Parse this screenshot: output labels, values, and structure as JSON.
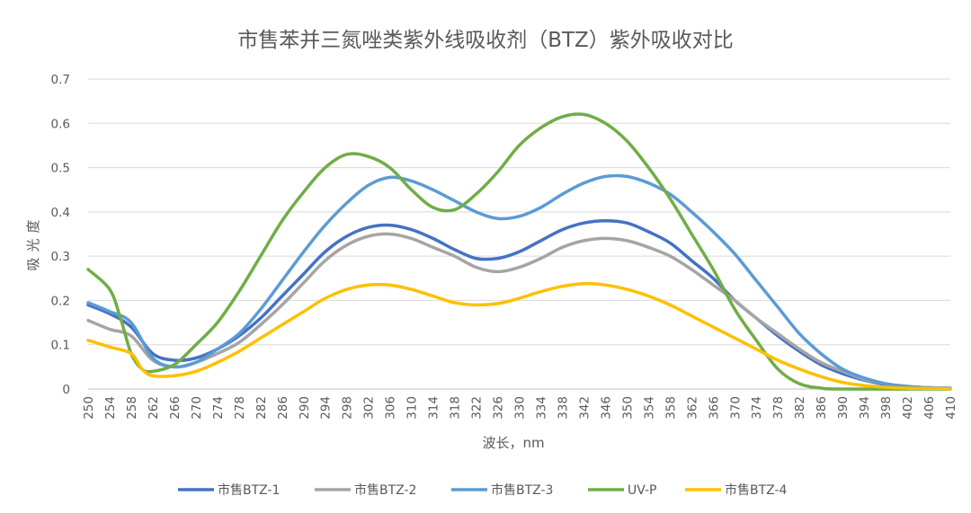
{
  "chart_data": {
    "type": "line",
    "title": "市售苯并三氮唑类紫外线吸收剂（BTZ）紫外吸收对比",
    "xlabel": "波长，nm",
    "ylabel": "吸光度",
    "xlim": [
      250,
      410
    ],
    "ylim": [
      0,
      0.7
    ],
    "y_ticks": [
      "0",
      "0.1",
      "0.2",
      "0.3",
      "0.4",
      "0.5",
      "0.6",
      "0.7"
    ],
    "x_ticks": [
      "250",
      "254",
      "258",
      "262",
      "266",
      "270",
      "274",
      "278",
      "282",
      "286",
      "290",
      "294",
      "298",
      "302",
      "306",
      "310",
      "314",
      "318",
      "322",
      "326",
      "330",
      "334",
      "338",
      "342",
      "346",
      "350",
      "354",
      "358",
      "362",
      "366",
      "370",
      "374",
      "378",
      "382",
      "386",
      "390",
      "394",
      "398",
      "402",
      "406",
      "410"
    ],
    "grid": "horizontal",
    "legend_position": "bottom",
    "series": [
      {
        "name": "市售BTZ-1",
        "color": "#4472C4",
        "points": [
          [
            250,
            0.19
          ],
          [
            254,
            0.17
          ],
          [
            258,
            0.14
          ],
          [
            262,
            0.08
          ],
          [
            266,
            0.065
          ],
          [
            270,
            0.07
          ],
          [
            274,
            0.09
          ],
          [
            278,
            0.12
          ],
          [
            282,
            0.16
          ],
          [
            286,
            0.21
          ],
          [
            290,
            0.26
          ],
          [
            294,
            0.31
          ],
          [
            298,
            0.345
          ],
          [
            302,
            0.365
          ],
          [
            306,
            0.37
          ],
          [
            310,
            0.36
          ],
          [
            314,
            0.34
          ],
          [
            318,
            0.315
          ],
          [
            322,
            0.295
          ],
          [
            326,
            0.295
          ],
          [
            330,
            0.31
          ],
          [
            334,
            0.335
          ],
          [
            338,
            0.36
          ],
          [
            342,
            0.375
          ],
          [
            346,
            0.38
          ],
          [
            350,
            0.375
          ],
          [
            354,
            0.355
          ],
          [
            358,
            0.33
          ],
          [
            362,
            0.29
          ],
          [
            366,
            0.25
          ],
          [
            370,
            0.2
          ],
          [
            374,
            0.16
          ],
          [
            378,
            0.12
          ],
          [
            382,
            0.085
          ],
          [
            386,
            0.055
          ],
          [
            390,
            0.035
          ],
          [
            394,
            0.02
          ],
          [
            398,
            0.01
          ],
          [
            402,
            0.005
          ],
          [
            406,
            0.003
          ],
          [
            410,
            0.002
          ]
        ]
      },
      {
        "name": "市售BTZ-2",
        "color": "#A5A5A5",
        "points": [
          [
            250,
            0.155
          ],
          [
            254,
            0.135
          ],
          [
            258,
            0.12
          ],
          [
            262,
            0.065
          ],
          [
            266,
            0.05
          ],
          [
            270,
            0.06
          ],
          [
            274,
            0.08
          ],
          [
            278,
            0.105
          ],
          [
            282,
            0.145
          ],
          [
            286,
            0.19
          ],
          [
            290,
            0.24
          ],
          [
            294,
            0.29
          ],
          [
            298,
            0.325
          ],
          [
            302,
            0.345
          ],
          [
            306,
            0.35
          ],
          [
            310,
            0.34
          ],
          [
            314,
            0.32
          ],
          [
            318,
            0.3
          ],
          [
            322,
            0.275
          ],
          [
            326,
            0.265
          ],
          [
            330,
            0.275
          ],
          [
            334,
            0.295
          ],
          [
            338,
            0.32
          ],
          [
            342,
            0.335
          ],
          [
            346,
            0.34
          ],
          [
            350,
            0.335
          ],
          [
            354,
            0.32
          ],
          [
            358,
            0.3
          ],
          [
            362,
            0.27
          ],
          [
            366,
            0.235
          ],
          [
            370,
            0.2
          ],
          [
            374,
            0.16
          ],
          [
            378,
            0.125
          ],
          [
            382,
            0.09
          ],
          [
            386,
            0.06
          ],
          [
            390,
            0.04
          ],
          [
            394,
            0.022
          ],
          [
            398,
            0.012
          ],
          [
            402,
            0.006
          ],
          [
            406,
            0.003
          ],
          [
            410,
            0.002
          ]
        ]
      },
      {
        "name": "市售BTZ-3",
        "color": "#5B9BD5",
        "points": [
          [
            250,
            0.195
          ],
          [
            254,
            0.175
          ],
          [
            258,
            0.15
          ],
          [
            262,
            0.07
          ],
          [
            266,
            0.05
          ],
          [
            270,
            0.06
          ],
          [
            274,
            0.09
          ],
          [
            278,
            0.125
          ],
          [
            282,
            0.18
          ],
          [
            286,
            0.245
          ],
          [
            290,
            0.31
          ],
          [
            294,
            0.37
          ],
          [
            298,
            0.42
          ],
          [
            302,
            0.46
          ],
          [
            306,
            0.478
          ],
          [
            310,
            0.47
          ],
          [
            314,
            0.45
          ],
          [
            318,
            0.425
          ],
          [
            322,
            0.4
          ],
          [
            326,
            0.385
          ],
          [
            330,
            0.39
          ],
          [
            334,
            0.41
          ],
          [
            338,
            0.44
          ],
          [
            342,
            0.465
          ],
          [
            346,
            0.48
          ],
          [
            350,
            0.48
          ],
          [
            354,
            0.465
          ],
          [
            358,
            0.44
          ],
          [
            362,
            0.4
          ],
          [
            366,
            0.355
          ],
          [
            370,
            0.305
          ],
          [
            374,
            0.245
          ],
          [
            378,
            0.185
          ],
          [
            382,
            0.125
          ],
          [
            386,
            0.08
          ],
          [
            390,
            0.045
          ],
          [
            394,
            0.025
          ],
          [
            398,
            0.012
          ],
          [
            402,
            0.006
          ],
          [
            406,
            0.003
          ],
          [
            410,
            0.002
          ]
        ]
      },
      {
        "name": "UV-P",
        "color": "#70AD47",
        "points": [
          [
            250,
            0.27
          ],
          [
            254,
            0.225
          ],
          [
            256,
            0.16
          ],
          [
            258,
            0.08
          ],
          [
            260,
            0.045
          ],
          [
            262,
            0.04
          ],
          [
            266,
            0.055
          ],
          [
            270,
            0.1
          ],
          [
            274,
            0.15
          ],
          [
            278,
            0.22
          ],
          [
            282,
            0.3
          ],
          [
            286,
            0.38
          ],
          [
            290,
            0.445
          ],
          [
            294,
            0.5
          ],
          [
            298,
            0.53
          ],
          [
            302,
            0.525
          ],
          [
            306,
            0.5
          ],
          [
            310,
            0.45
          ],
          [
            314,
            0.41
          ],
          [
            318,
            0.405
          ],
          [
            322,
            0.44
          ],
          [
            326,
            0.49
          ],
          [
            330,
            0.55
          ],
          [
            334,
            0.59
          ],
          [
            338,
            0.615
          ],
          [
            342,
            0.62
          ],
          [
            346,
            0.6
          ],
          [
            350,
            0.56
          ],
          [
            354,
            0.5
          ],
          [
            358,
            0.43
          ],
          [
            362,
            0.35
          ],
          [
            366,
            0.27
          ],
          [
            370,
            0.18
          ],
          [
            374,
            0.11
          ],
          [
            378,
            0.045
          ],
          [
            382,
            0.012
          ],
          [
            386,
            0.002
          ],
          [
            390,
            0.0
          ],
          [
            410,
            0.0
          ]
        ]
      },
      {
        "name": "市售BTZ-4",
        "color": "#FFC000",
        "points": [
          [
            250,
            0.11
          ],
          [
            254,
            0.095
          ],
          [
            258,
            0.08
          ],
          [
            260,
            0.045
          ],
          [
            262,
            0.03
          ],
          [
            266,
            0.03
          ],
          [
            270,
            0.04
          ],
          [
            274,
            0.06
          ],
          [
            278,
            0.085
          ],
          [
            282,
            0.115
          ],
          [
            286,
            0.145
          ],
          [
            290,
            0.175
          ],
          [
            294,
            0.205
          ],
          [
            298,
            0.225
          ],
          [
            302,
            0.235
          ],
          [
            306,
            0.235
          ],
          [
            310,
            0.225
          ],
          [
            314,
            0.21
          ],
          [
            318,
            0.195
          ],
          [
            322,
            0.19
          ],
          [
            326,
            0.193
          ],
          [
            330,
            0.205
          ],
          [
            334,
            0.22
          ],
          [
            338,
            0.232
          ],
          [
            342,
            0.238
          ],
          [
            346,
            0.235
          ],
          [
            350,
            0.225
          ],
          [
            354,
            0.21
          ],
          [
            358,
            0.19
          ],
          [
            362,
            0.165
          ],
          [
            366,
            0.14
          ],
          [
            370,
            0.115
          ],
          [
            374,
            0.09
          ],
          [
            378,
            0.065
          ],
          [
            382,
            0.045
          ],
          [
            386,
            0.028
          ],
          [
            390,
            0.015
          ],
          [
            394,
            0.008
          ],
          [
            398,
            0.004
          ],
          [
            402,
            0.002
          ],
          [
            410,
            0.001
          ]
        ]
      }
    ]
  }
}
